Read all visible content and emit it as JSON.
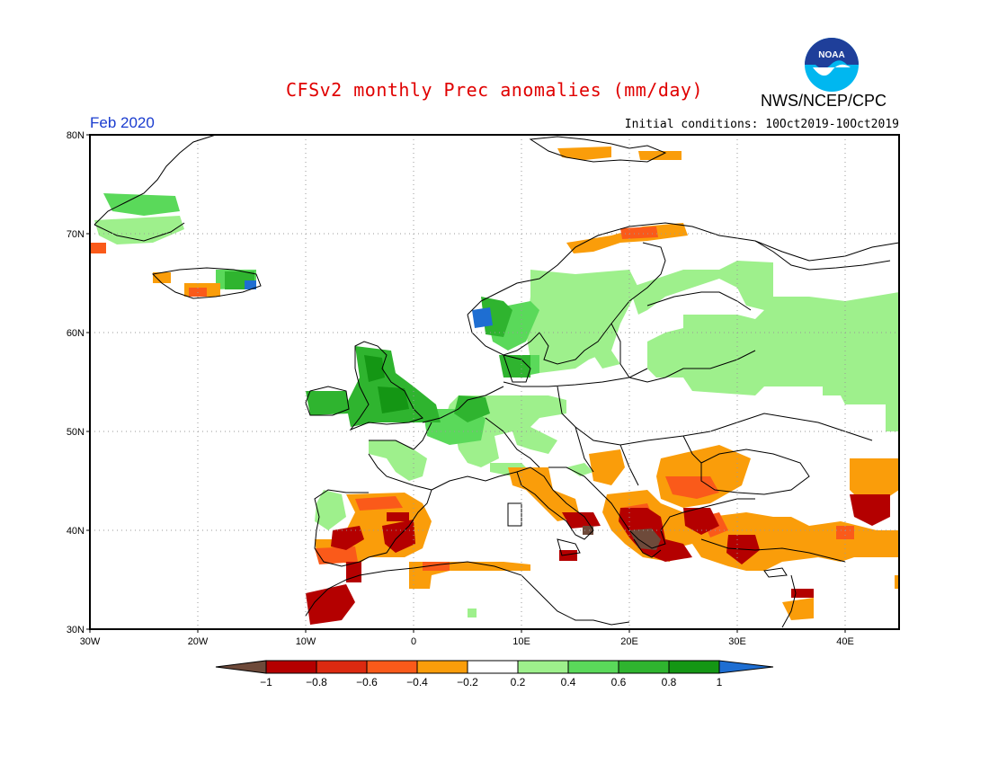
{
  "header": {
    "title": "CFSv2 monthly Prec anomalies (mm/day)",
    "org": "NWS/NCEP/CPC",
    "period": "Feb 2020",
    "initial_conditions": "Initial conditions: 10Oct2019-10Oct2019",
    "logo_text": "NOAA"
  },
  "map": {
    "lat_labels": [
      "80N",
      "70N",
      "60N",
      "50N",
      "40N",
      "30N"
    ],
    "lon_labels": [
      "30W",
      "20W",
      "10W",
      "0",
      "10E",
      "20E",
      "30E",
      "40E"
    ],
    "lat_range": [
      30,
      80
    ],
    "lon_range": [
      -30,
      45
    ],
    "grid": "dotted",
    "colorbar": {
      "labels": [
        "-1",
        "-0.8",
        "-0.6",
        "-0.4",
        "-0.2",
        "0.2",
        "0.4",
        "0.6",
        "0.8",
        "1"
      ],
      "colors": [
        "#6e4a3a",
        "#b40000",
        "#dc2a10",
        "#fa5a1a",
        "#fa9d0a",
        "#ffffff",
        "#9ef08c",
        "#5ad95a",
        "#2fb42f",
        "#149614",
        "#1e6ed2"
      ]
    },
    "colors": {
      "ocean": "#ffffff",
      "coast": "#000000",
      "grid": "#999999"
    }
  }
}
